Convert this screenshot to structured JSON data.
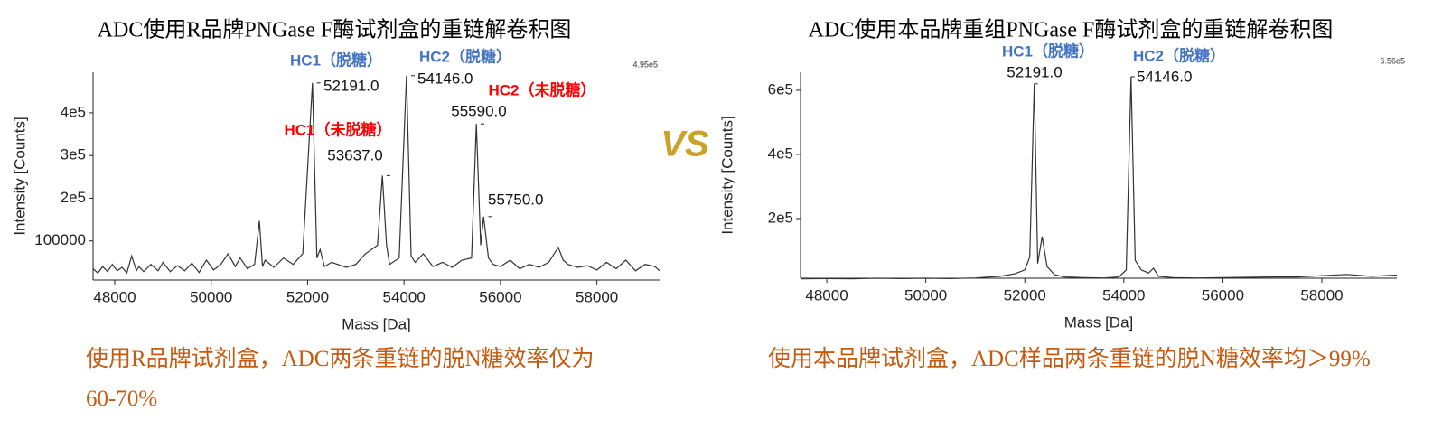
{
  "chart_data": [
    {
      "type": "line",
      "title": "ADC使用R品牌PNGase F酶试剂盒的重链解卷积图",
      "x_label": "Mass [Da]",
      "y_label": "Intensity [Counts]",
      "corner_label": "4.95e5",
      "color": "#333333",
      "xlim": [
        47550,
        59300
      ],
      "ylim": [
        0,
        495000
      ],
      "xticks": [
        48000,
        50000,
        52000,
        54000,
        56000,
        58000
      ],
      "yticks": [
        100000,
        {
          "value": 200000,
          "label": "2e5"
        },
        {
          "value": 300000,
          "label": "3e5"
        },
        {
          "value": 400000,
          "label": "4e5"
        }
      ],
      "x": [
        47550,
        47650,
        47750,
        47850,
        47950,
        48050,
        48150,
        48250,
        48350,
        48450,
        48500,
        48600,
        48750,
        48900,
        49000,
        49150,
        49300,
        49450,
        49600,
        49750,
        49900,
        50050,
        50200,
        50350,
        50500,
        50600,
        50750,
        50900,
        51000,
        51064,
        51120,
        51300,
        51500,
        51700,
        51900,
        52100,
        52191,
        52260,
        52350,
        52500,
        52800,
        53000,
        53200,
        53450,
        53550,
        53637,
        53700,
        53900,
        54050,
        54146,
        54230,
        54400,
        54600,
        54800,
        55000,
        55200,
        55400,
        55500,
        55590,
        55650,
        55750,
        55850,
        56000,
        56200,
        56400,
        56600,
        56800,
        57000,
        57200,
        57300,
        57400,
        57600,
        57800,
        58000,
        58200,
        58400,
        58600,
        58800,
        59000,
        59200,
        59300
      ],
      "values": [
        35000,
        25000,
        40000,
        28000,
        45000,
        30000,
        38000,
        25000,
        65000,
        30000,
        40000,
        28000,
        45000,
        30000,
        50000,
        28000,
        42000,
        30000,
        48000,
        26000,
        55000,
        32000,
        45000,
        70000,
        40000,
        60000,
        35000,
        45000,
        147000,
        40000,
        55000,
        38000,
        60000,
        45000,
        70000,
        470000,
        60000,
        80000,
        40000,
        50000,
        38000,
        45000,
        70000,
        90000,
        253000,
        90000,
        45000,
        60000,
        487000,
        65000,
        50000,
        70000,
        40000,
        50000,
        38000,
        55000,
        60000,
        374000,
        90000,
        157000,
        60000,
        45000,
        40000,
        55000,
        35000,
        45000,
        38000,
        50000,
        85000,
        55000,
        45000,
        38000,
        42000,
        32000,
        50000,
        35000,
        55000,
        30000,
        45000,
        40000,
        30000
      ],
      "peaks": [
        {
          "label": "52191.0",
          "x": 52191,
          "y": 470000,
          "group": "HC1（脱糖）",
          "group_color": "#4472c4"
        },
        {
          "label": "53637.0",
          "x": 53637,
          "y": 253000,
          "group": "HC1（未脱糖）",
          "group_color": "#ff0000"
        },
        {
          "label": "54146.0",
          "x": 54146,
          "y": 487000,
          "group": "HC2（脱糖）",
          "group_color": "#4472c4"
        },
        {
          "label": "55590.0",
          "x": 55590,
          "y": 374000,
          "group": "HC2（未脱糖）",
          "group_color": "#ff0000"
        },
        {
          "label": "55750.0",
          "x": 55750,
          "y": 157000
        }
      ]
    },
    {
      "type": "line",
      "title": "ADC使用本品牌重组PNGase F酶试剂盒的重链解卷积图",
      "x_label": "Mass [Da]",
      "y_label": "Intensity [Counts]",
      "corner_label": "6.56e5",
      "color": "#333333",
      "xlim": [
        47470,
        59515
      ],
      "ylim": [
        0,
        656000
      ],
      "xticks": [
        48000,
        50000,
        52000,
        54000,
        56000,
        58000
      ],
      "yticks": [
        {
          "value": 200000,
          "label": "2e5"
        },
        {
          "value": 400000,
          "label": "4e5"
        },
        {
          "value": 600000,
          "label": "6e5"
        }
      ],
      "x": [
        47470,
        48000,
        48500,
        49000,
        49500,
        50000,
        50500,
        51000,
        51500,
        51800,
        52000,
        52100,
        52191,
        52260,
        52350,
        52450,
        52600,
        52800,
        53200,
        53600,
        53900,
        54050,
        54146,
        54230,
        54350,
        54500,
        54600,
        54700,
        55000,
        55500,
        56000,
        56500,
        57000,
        57500,
        58000,
        58500,
        59000,
        59515
      ],
      "values": [
        12000,
        13000,
        12000,
        14000,
        13000,
        14000,
        13000,
        15000,
        20000,
        28000,
        40000,
        80000,
        620000,
        60000,
        144000,
        50000,
        25000,
        18000,
        16000,
        15000,
        18000,
        40000,
        642000,
        70000,
        40000,
        30000,
        45000,
        20000,
        16000,
        15000,
        16000,
        17000,
        18000,
        18000,
        22000,
        26000,
        20000,
        24000
      ],
      "peaks": [
        {
          "label": "52191.0",
          "x": 52191,
          "y": 620000,
          "group": "HC1（脱糖）",
          "group_color": "#4472c4"
        },
        {
          "label": "54146.0",
          "x": 54146,
          "y": 642000,
          "group": "HC2（脱糖）",
          "group_color": "#4472c4"
        }
      ]
    }
  ],
  "vs": "VS",
  "captions": [
    "使用R品牌试剂盒，ADC两条重链的脱N糖效率仅为60-70%",
    "使用本品牌试剂盒，ADC样品两条重链的脱N糖效率均＞99%"
  ]
}
